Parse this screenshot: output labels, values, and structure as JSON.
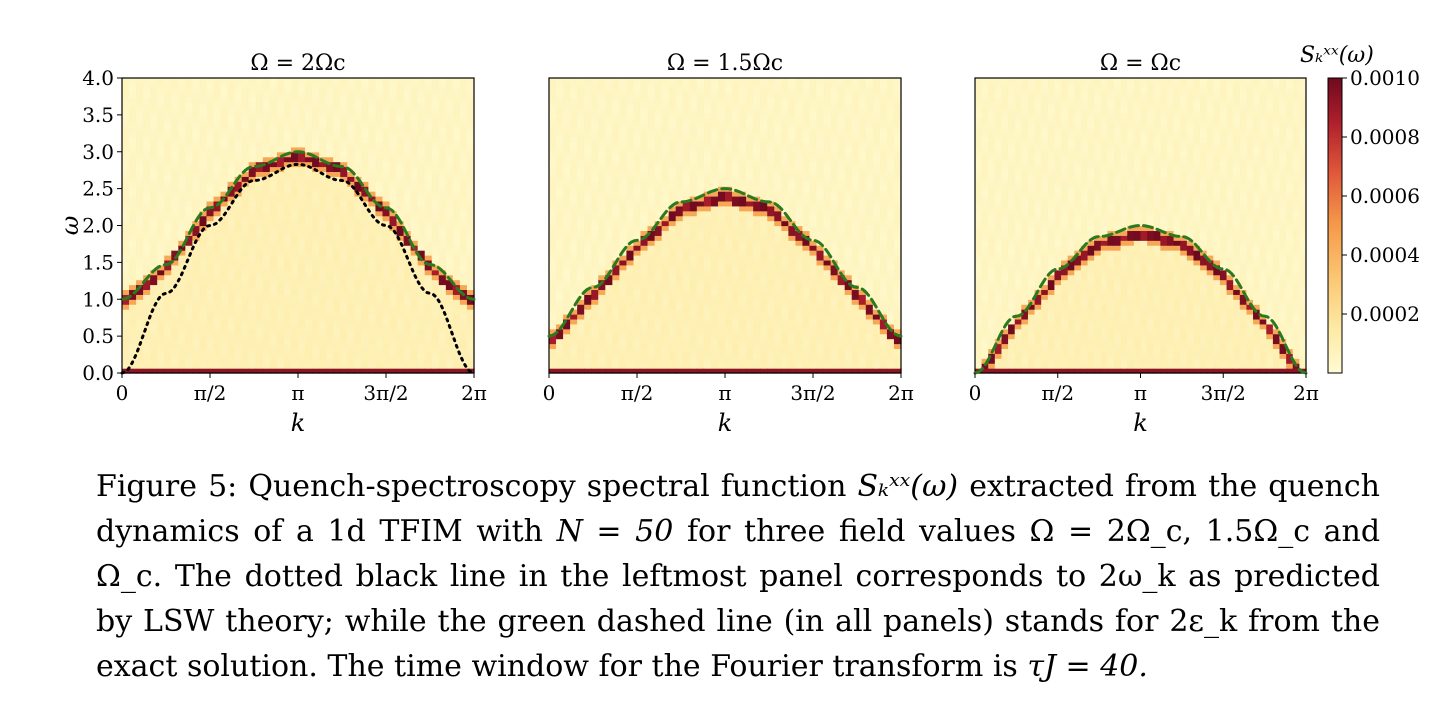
{
  "figure": {
    "y_axis_label": "ω",
    "x_axis_label": "k",
    "y_ticks": [
      "0.0",
      "0.5",
      "1.0",
      "1.5",
      "2.0",
      "2.5",
      "3.0",
      "3.5",
      "4.0"
    ],
    "x_ticks": [
      "0",
      "π/2",
      "π",
      "3π/2",
      "2π"
    ],
    "colorbar": {
      "label": "Sₖˣˣ(ω)",
      "ticks": [
        "0.0010",
        "0.0008",
        "0.0006",
        "0.0004",
        "0.0002"
      ],
      "colors": [
        "#fffbd3",
        "#fdeaa4",
        "#fbc774",
        "#f59a4a",
        "#e0583a",
        "#ae1f2c",
        "#6e0a1f"
      ]
    },
    "curve_colors": {
      "exact_dashed": "#2a7a1f",
      "lsw_dotted": "#000000"
    }
  },
  "chart_data": [
    {
      "type": "heatmap",
      "title": "Ω = 2Ω_c",
      "xlabel": "k",
      "ylabel": "ω",
      "xlim": [
        0,
        6.2832
      ],
      "ylim": [
        0,
        4.0
      ],
      "omega_ratio": 2.0,
      "series": [
        {
          "name": "2ε_k (exact, green dashed)",
          "style": "dashed",
          "x": [
            0,
            0.785,
            1.571,
            2.356,
            3.142,
            3.927,
            4.712,
            5.498,
            6.283
          ],
          "y": [
            1.0,
            1.47,
            2.24,
            2.8,
            3.0,
            2.8,
            2.24,
            1.47,
            1.0
          ]
        },
        {
          "name": "2ω_k (LSW, black dotted)",
          "style": "dotted",
          "x": [
            0,
            0.785,
            1.571,
            2.356,
            3.142,
            3.927,
            4.712,
            5.498,
            6.283
          ],
          "y": [
            0.0,
            1.08,
            2.0,
            2.61,
            2.83,
            2.61,
            2.0,
            1.08,
            0.0
          ]
        }
      ]
    },
    {
      "type": "heatmap",
      "title": "Ω = 1.5Ω_c",
      "xlabel": "k",
      "ylabel": "ω",
      "xlim": [
        0,
        6.2832
      ],
      "ylim": [
        0,
        4.0
      ],
      "omega_ratio": 1.5,
      "series": [
        {
          "name": "2ε_k (exact, green dashed)",
          "style": "dashed",
          "x": [
            0,
            0.785,
            1.571,
            2.356,
            3.142,
            3.927,
            4.712,
            5.498,
            6.283
          ],
          "y": [
            0.5,
            1.16,
            1.8,
            2.32,
            2.5,
            2.32,
            1.8,
            1.16,
            0.5
          ]
        }
      ]
    },
    {
      "type": "heatmap",
      "title": "Ω = Ω_c",
      "xlabel": "k",
      "ylabel": "ω",
      "xlim": [
        0,
        6.2832
      ],
      "ylim": [
        0,
        4.0
      ],
      "omega_ratio": 1.0,
      "series": [
        {
          "name": "2ε_k (exact, green dashed)",
          "style": "dashed",
          "x": [
            0,
            0.785,
            1.571,
            2.356,
            3.142,
            3.927,
            4.712,
            5.498,
            6.283
          ],
          "y": [
            0.0,
            0.77,
            1.41,
            1.85,
            2.0,
            1.85,
            1.41,
            0.77,
            0.0
          ]
        }
      ]
    }
  ],
  "caption": {
    "prefix": "Figure 5: Quench-spectroscopy spectral function ",
    "s_symbol": "Sₖˣˣ(ω)",
    "part1": " extracted from the quench dynamics of a 1d TFIM with ",
    "n_value": "N = 50",
    "part2": " for three field values ",
    "field_values": "Ω = 2Ω_c, 1.5Ω_c and Ω_c.",
    "part3": " The dotted black line in the leftmost panel corresponds to ",
    "omega_k": "2ω_k",
    "part4": " as predicted by LSW theory; while the green dashed line (in all panels) stands for ",
    "eps_k": "2ε_k",
    "part5": " from the exact solution. The time window for the Fourier transform is ",
    "tau": "τJ = 40."
  }
}
